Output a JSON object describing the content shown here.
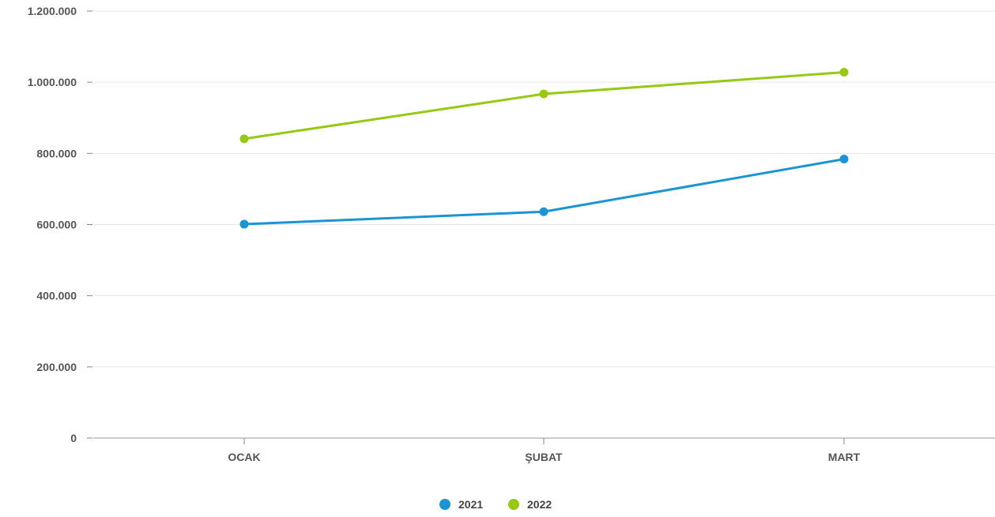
{
  "chart_data": {
    "type": "line",
    "title": "",
    "xlabel": "",
    "ylabel": "",
    "categories": [
      "OCAK",
      "ŞUBAT",
      "MART"
    ],
    "series": [
      {
        "name": "2021",
        "color": "#1b94d4",
        "values": [
          601000,
          636000,
          784000
        ]
      },
      {
        "name": "2022",
        "color": "#96c913",
        "values": [
          841000,
          967000,
          1028000
        ]
      }
    ],
    "ylim": [
      0,
      1200000
    ],
    "yticks": [
      {
        "value": 0,
        "label": "0"
      },
      {
        "value": 200000,
        "label": "200.000"
      },
      {
        "value": 400000,
        "label": "400.000"
      },
      {
        "value": 600000,
        "label": "600.000"
      },
      {
        "value": 800000,
        "label": "800.000"
      },
      {
        "value": 1000000,
        "label": "1.000.000"
      },
      {
        "value": 1200000,
        "label": "1.200.000"
      }
    ],
    "grid": true,
    "legend_position": "bottom-center",
    "colors": {
      "grid": "#e6e6e6",
      "axis": "#bbbbbb",
      "tick_text": "#555555"
    }
  }
}
